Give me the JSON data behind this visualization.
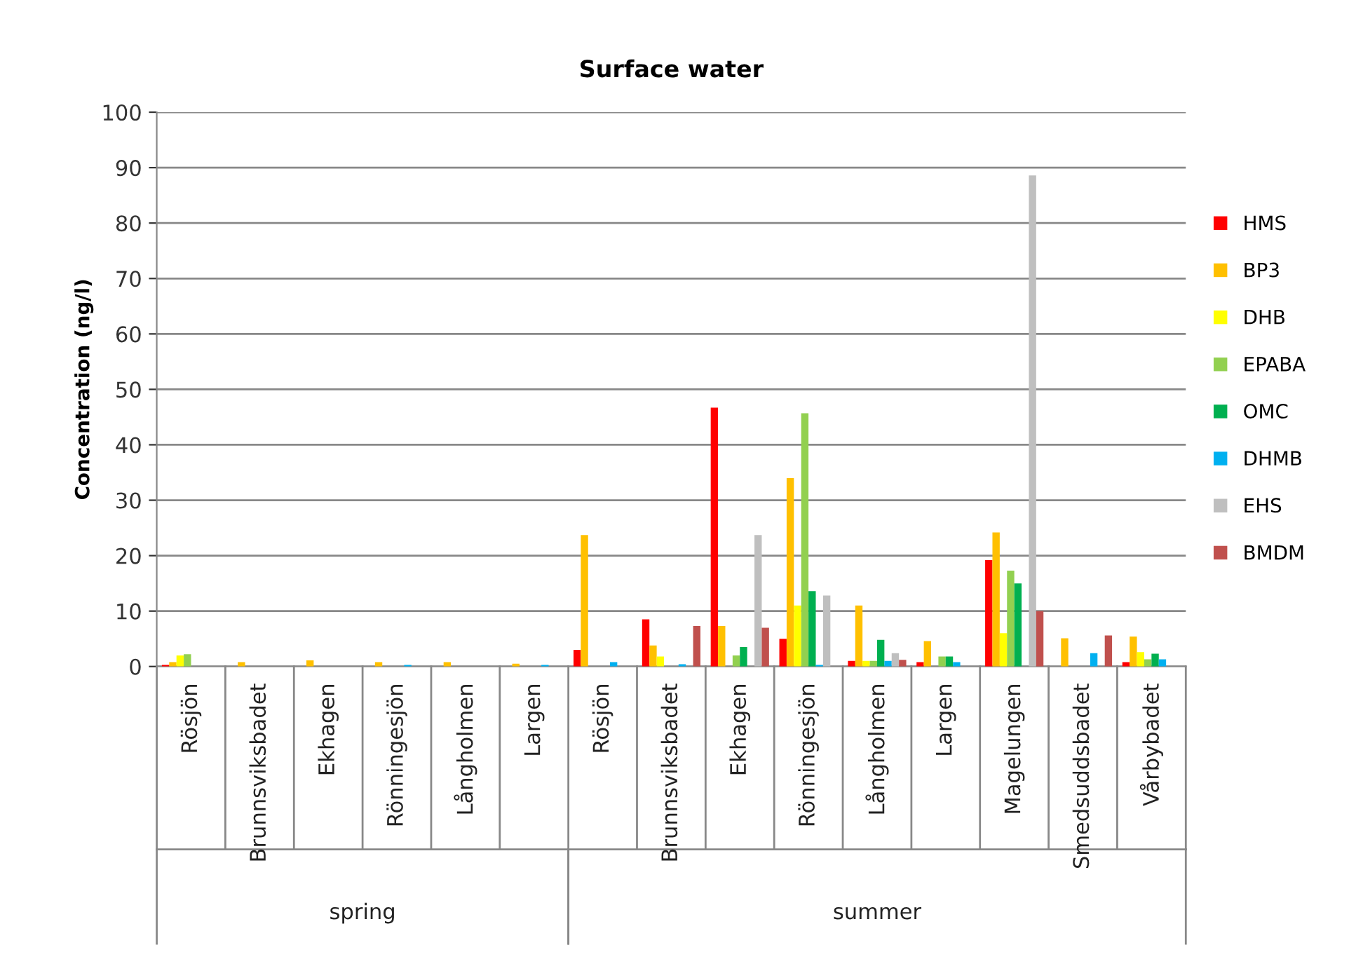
{
  "chart_data": {
    "type": "bar",
    "title": "Surface water",
    "ylabel": "Concentration (ng/l)",
    "categories": [
      "Rösjön",
      "Brunnsviksbadet",
      "Ekhagen",
      "Rönningesjön",
      "Långholmen",
      "Largen",
      "Rösjön",
      "Brunnsviksbadet",
      "Ekhagen",
      "Rönningesjön",
      "Långholmen",
      "Largen",
      "Magelungen",
      "Smedsuddsbadet",
      "Vårbybadet"
    ],
    "annotations": [
      "spring",
      "summer"
    ],
    "series": [
      {
        "name": "HMS",
        "color": "#ff0000",
        "values": [
          0.3,
          0,
          0,
          0,
          0,
          0,
          3,
          8.5,
          46.7,
          5,
          1,
          0.8,
          19.2,
          0,
          0.8
        ]
      },
      {
        "name": "BP3",
        "color": "#ffc000",
        "values": [
          0.8,
          0.8,
          1.1,
          0.8,
          0.8,
          0.5,
          23.7,
          3.8,
          7.3,
          34,
          11,
          4.6,
          24.2,
          5.1,
          5.4
        ]
      },
      {
        "name": "DHB",
        "color": "#ffff00",
        "values": [
          2,
          0,
          0,
          0,
          0,
          0,
          0,
          1.8,
          0,
          11,
          1,
          0,
          6,
          0,
          2.6
        ]
      },
      {
        "name": "EPABA",
        "color": "#92d050",
        "values": [
          2.2,
          0,
          0,
          0,
          0,
          0,
          0,
          0,
          2,
          45.7,
          1,
          1.8,
          17.3,
          0,
          1.3
        ]
      },
      {
        "name": "OMC",
        "color": "#00b050",
        "values": [
          0,
          0,
          0,
          0,
          0,
          0,
          0,
          0,
          3.5,
          13.6,
          4.8,
          1.8,
          15,
          0,
          2.3
        ]
      },
      {
        "name": "DHMB",
        "color": "#00b0f0",
        "values": [
          0,
          0,
          0,
          0.3,
          0,
          0.3,
          0.8,
          0.4,
          0,
          0.3,
          1,
          0.8,
          0,
          2.4,
          1.3
        ]
      },
      {
        "name": "EHS",
        "color": "#bfbfbf",
        "values": [
          0,
          0,
          0,
          0,
          0,
          0,
          0,
          0,
          23.7,
          12.8,
          2.4,
          0,
          88.6,
          0,
          0
        ]
      },
      {
        "name": "BMDM",
        "color": "#c0504d",
        "values": [
          0,
          0,
          0,
          0,
          0,
          0,
          0,
          7.3,
          7,
          0,
          1.2,
          0,
          10,
          5.6,
          0
        ]
      }
    ],
    "ylim": [
      0,
      100
    ],
    "yticks": [
      0,
      10,
      20,
      30,
      40,
      50,
      60,
      70,
      80,
      90,
      100
    ],
    "grid": "y",
    "legend": "right"
  }
}
